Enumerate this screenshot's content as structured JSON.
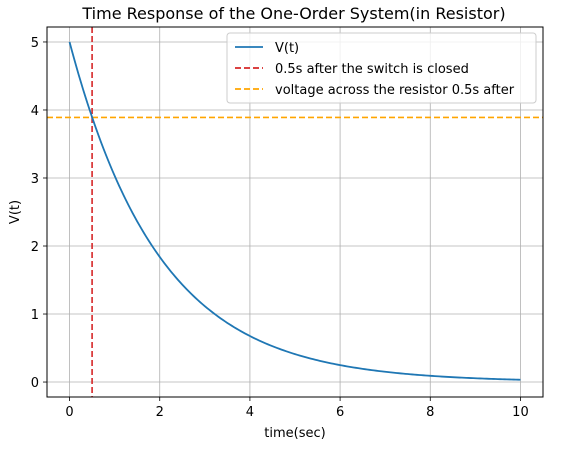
{
  "chart_data": {
    "type": "line",
    "title": "Time Response of the One-Order System(in Resistor)",
    "xlabel": "time(sec)",
    "ylabel": "V(t)",
    "xlim": [
      -0.5,
      10.5
    ],
    "ylim": [
      -0.22,
      5.22
    ],
    "xticks": [
      0,
      2,
      4,
      6,
      8,
      10
    ],
    "yticks": [
      0,
      1,
      2,
      3,
      4,
      5
    ],
    "grid": true,
    "legend_position": "top-right",
    "series": [
      {
        "name": "V(t)",
        "color": "#1f77b4",
        "style": "solid",
        "x": [
          0,
          0.25,
          0.5,
          0.75,
          1,
          1.25,
          1.5,
          1.75,
          2,
          2.25,
          2.5,
          2.75,
          3,
          3.25,
          3.5,
          3.75,
          4,
          4.25,
          4.5,
          4.75,
          5,
          5.25,
          5.5,
          5.75,
          6,
          6.25,
          6.5,
          6.75,
          7,
          7.25,
          7.5,
          7.75,
          8,
          8.25,
          8.5,
          8.75,
          9,
          9.25,
          9.5,
          9.75,
          10
        ],
        "y": [
          5.0,
          4.41,
          3.89,
          3.44,
          3.03,
          2.68,
          2.36,
          2.08,
          1.84,
          1.62,
          1.43,
          1.26,
          1.12,
          0.98,
          0.87,
          0.77,
          0.68,
          0.6,
          0.53,
          0.46,
          0.41,
          0.36,
          0.32,
          0.28,
          0.25,
          0.22,
          0.19,
          0.17,
          0.15,
          0.13,
          0.12,
          0.1,
          0.09,
          0.08,
          0.07,
          0.06,
          0.06,
          0.05,
          0.04,
          0.04,
          0.03
        ]
      }
    ],
    "reference_lines": [
      {
        "name": "0.5s after the switch is closed",
        "orientation": "vertical",
        "x": 0.5,
        "color": "#d62728",
        "style": "dashed"
      },
      {
        "name": "voltage across the resistor 0.5s after",
        "orientation": "horizontal",
        "y": 3.89,
        "color": "#ffa500",
        "style": "dashed"
      }
    ]
  }
}
